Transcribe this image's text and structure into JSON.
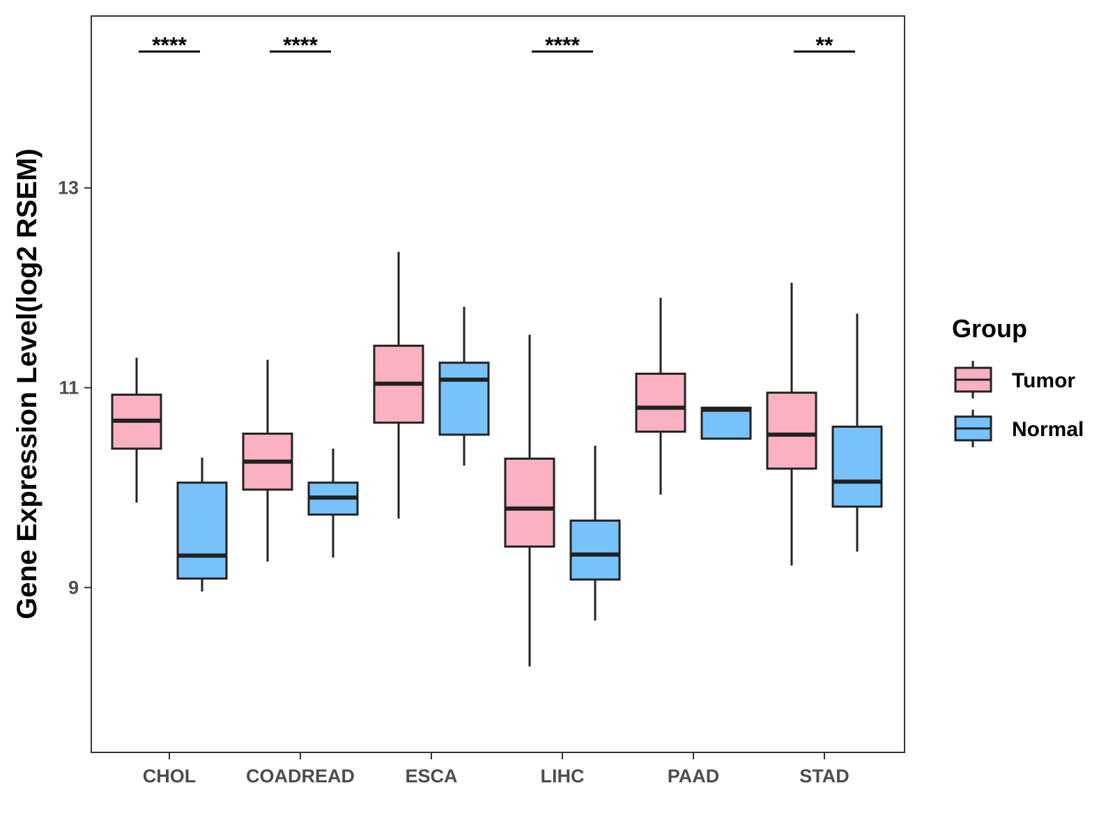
{
  "chart_data": {
    "type": "boxplot",
    "title": "",
    "xlabel": "",
    "ylabel": "Gene Expression Level(log2 RSEM)",
    "ylim": [
      7.35,
      14.72
    ],
    "yticks": [
      9,
      11,
      13
    ],
    "categories": [
      "CHOL",
      "COADREAD",
      "ESCA",
      "LIHC",
      "PAAD",
      "STAD"
    ],
    "legend": {
      "title": "Group",
      "position": "right",
      "entries": [
        {
          "name": "Tumor",
          "color": "#FBB1C2"
        },
        {
          "name": "Normal",
          "color": "#77C2FA"
        }
      ]
    },
    "series": [
      {
        "name": "Tumor",
        "color": "#FBB1C2",
        "boxes": [
          {
            "whisker_low": 9.85,
            "q1": 10.39,
            "median": 10.67,
            "q3": 10.93,
            "whisker_high": 11.3
          },
          {
            "whisker_low": 9.26,
            "q1": 9.98,
            "median": 10.26,
            "q3": 10.54,
            "whisker_high": 11.28
          },
          {
            "whisker_low": 9.69,
            "q1": 10.65,
            "median": 11.04,
            "q3": 11.42,
            "whisker_high": 12.36
          },
          {
            "whisker_low": 8.21,
            "q1": 9.41,
            "median": 9.79,
            "q3": 10.29,
            "whisker_high": 11.53
          },
          {
            "whisker_low": 9.93,
            "q1": 10.56,
            "median": 10.8,
            "q3": 11.14,
            "whisker_high": 11.9
          },
          {
            "whisker_low": 9.22,
            "q1": 10.19,
            "median": 10.53,
            "q3": 10.95,
            "whisker_high": 12.05
          }
        ]
      },
      {
        "name": "Normal",
        "color": "#77C2FA",
        "boxes": [
          {
            "whisker_low": 8.96,
            "q1": 9.09,
            "median": 9.32,
            "q3": 10.05,
            "whisker_high": 10.3
          },
          {
            "whisker_low": 9.3,
            "q1": 9.73,
            "median": 9.9,
            "q3": 10.05,
            "whisker_high": 10.39
          },
          {
            "whisker_low": 10.22,
            "q1": 10.53,
            "median": 11.08,
            "q3": 11.25,
            "whisker_high": 11.81
          },
          {
            "whisker_low": 8.67,
            "q1": 9.08,
            "median": 9.33,
            "q3": 9.67,
            "whisker_high": 10.42
          },
          {
            "whisker_low": 10.49,
            "q1": 10.49,
            "median": 10.78,
            "q3": 10.8,
            "whisker_high": 10.8
          },
          {
            "whisker_low": 9.36,
            "q1": 9.81,
            "median": 10.06,
            "q3": 10.61,
            "whisker_high": 11.74
          }
        ]
      }
    ],
    "significance": [
      {
        "category": "CHOL",
        "label": "****"
      },
      {
        "category": "COADREAD",
        "label": "****"
      },
      {
        "category": "LIHC",
        "label": "****"
      },
      {
        "category": "STAD",
        "label": "**"
      }
    ]
  }
}
